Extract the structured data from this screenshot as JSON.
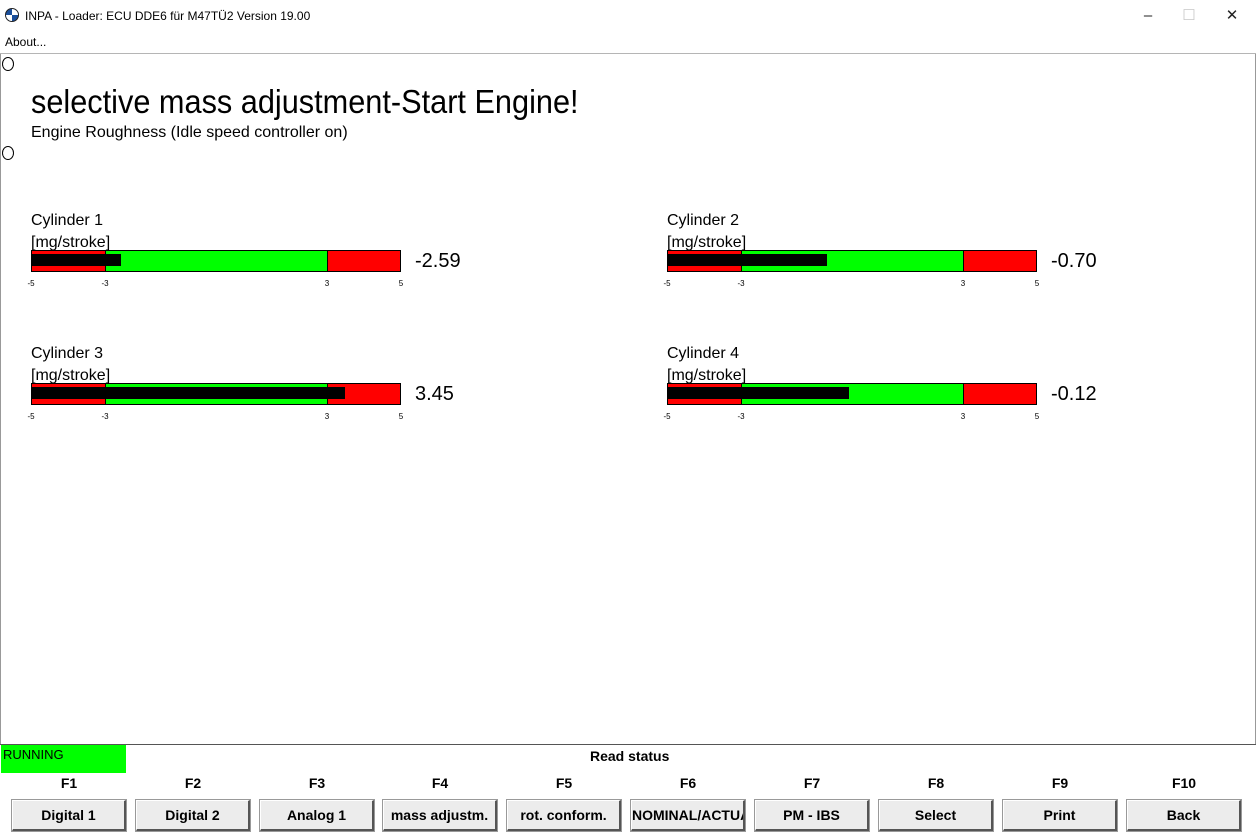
{
  "window": {
    "title": "INPA - Loader:  ECU DDE6 für M47TÜ2 Version 19.00",
    "minimize": "–",
    "maximize": "☐",
    "close": "✕"
  },
  "menu": {
    "about": "About..."
  },
  "page": {
    "title": "selective mass adjustment-Start Engine!",
    "subtitle": "Engine Roughness (Idle speed controller on)"
  },
  "gauges": [
    {
      "name": "Cylinder 1",
      "unit": "[mg/stroke]",
      "value_text": "-2.59",
      "value": -2.59
    },
    {
      "name": "Cylinder 2",
      "unit": "[mg/stroke]",
      "value_text": "-0.70",
      "value": -0.7
    },
    {
      "name": "Cylinder 3",
      "unit": "[mg/stroke]",
      "value_text": "3.45",
      "value": 3.45
    },
    {
      "name": "Cylinder 4",
      "unit": "[mg/stroke]",
      "value_text": "-0.12",
      "value": -0.12
    }
  ],
  "scale": {
    "min": -5,
    "max": 5,
    "warn_low": -3,
    "warn_high": 3,
    "ticks": [
      "-5",
      "-3",
      "3",
      "5"
    ],
    "ok_color": "#00ff00",
    "warn_color": "#ff0000",
    "needle_color": "#000000"
  },
  "status": {
    "state": "RUNNING",
    "state_color": "#00ff00",
    "message": "Read status"
  },
  "function_keys": [
    {
      "key": "F1",
      "label": "Digital 1"
    },
    {
      "key": "F2",
      "label": "Digital 2"
    },
    {
      "key": "F3",
      "label": "Analog 1"
    },
    {
      "key": "F4",
      "label": "mass adjustm."
    },
    {
      "key": "F5",
      "label": "rot. conform."
    },
    {
      "key": "F6",
      "label": "NOMINAL/ACTUAL"
    },
    {
      "key": "F7",
      "label": "PM - IBS"
    },
    {
      "key": "F8",
      "label": "Select"
    },
    {
      "key": "F9",
      "label": "Print"
    },
    {
      "key": "F10",
      "label": "Back"
    }
  ]
}
